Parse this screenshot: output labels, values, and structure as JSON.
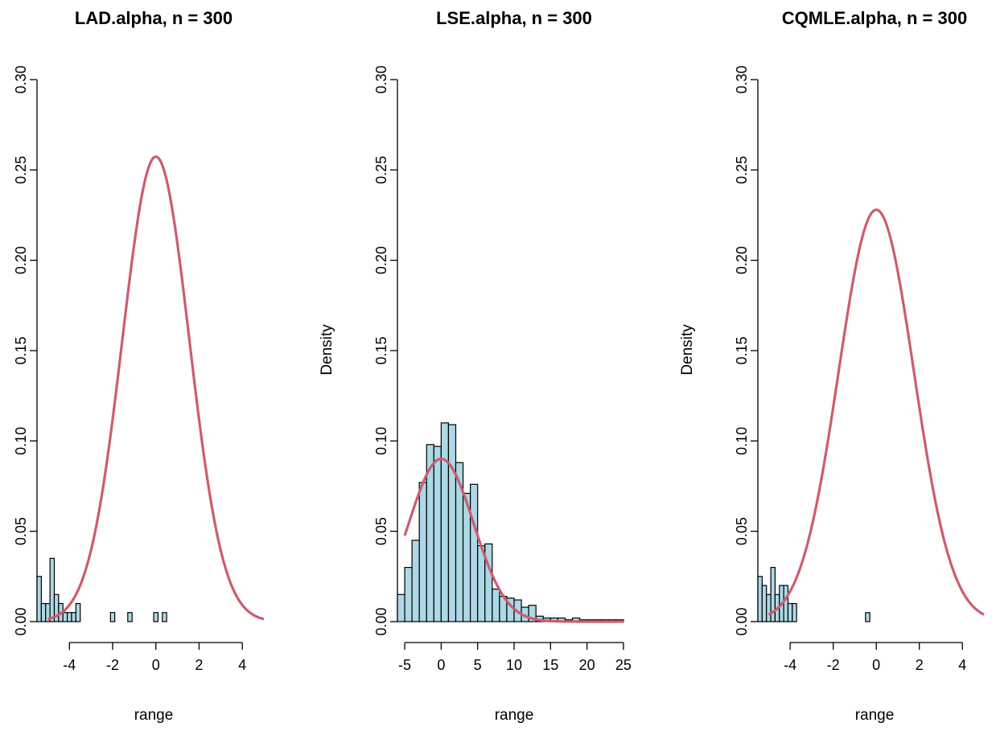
{
  "colors": {
    "bar_fill": "#add8e6",
    "bar_stroke": "#000000",
    "curve": "#cd5c6e",
    "axis": "#000000"
  },
  "chart_data": [
    {
      "type": "bar",
      "subtype": "histogram-with-density",
      "title": "LAD.alpha, n = 300",
      "xlabel": "range",
      "ylabel": "",
      "xlim": [
        -5.5,
        5.0
      ],
      "ylim": [
        0,
        0.3
      ],
      "xticks": [
        -4,
        -2,
        0,
        2,
        4
      ],
      "yticks": [
        0.0,
        0.05,
        0.1,
        0.15,
        0.2,
        0.25,
        0.3
      ],
      "ytick_labels": [
        "0.00",
        "0.05",
        "0.10",
        "0.15",
        "0.20",
        "0.25",
        "0.30"
      ],
      "bin_width": 0.2,
      "bin_starts": [
        -5.5,
        -5.3,
        -5.1,
        -4.9,
        -4.7,
        -4.5,
        -4.3,
        -4.1,
        -3.9,
        -3.7,
        -3.5,
        -3.3,
        -3.1,
        -2.9,
        -2.7,
        -2.5,
        -2.3,
        -2.1,
        -1.9,
        -1.7,
        -1.5,
        -1.3,
        -1.1,
        -0.9,
        -0.7,
        -0.5,
        -0.3,
        -0.1,
        0.1,
        0.3
      ],
      "values": [
        0.025,
        0.01,
        0.01,
        0.035,
        0.015,
        0.01,
        0.005,
        0.005,
        0.005,
        0.01,
        0,
        0,
        0,
        0,
        0,
        0,
        0,
        0.005,
        0,
        0,
        0,
        0.005,
        0,
        0,
        0,
        0,
        0,
        0.005,
        0,
        0.005
      ],
      "density_curve": {
        "mean": 0.0,
        "sd": 1.55,
        "x_range": [
          -5.0,
          5.0
        ]
      }
    },
    {
      "type": "bar",
      "subtype": "histogram-with-density",
      "title": "LSE.alpha, n = 300",
      "xlabel": "range",
      "ylabel": "Density",
      "xlim": [
        -6.0,
        26.0
      ],
      "ylim": [
        0,
        0.3
      ],
      "xticks": [
        -5,
        0,
        5,
        10,
        15,
        20,
        25
      ],
      "yticks": [
        0.0,
        0.05,
        0.1,
        0.15,
        0.2,
        0.25,
        0.3
      ],
      "ytick_labels": [
        "0.00",
        "0.05",
        "0.10",
        "0.15",
        "0.20",
        "0.25",
        "0.30"
      ],
      "bin_width": 1,
      "bin_starts": [
        -6,
        -5,
        -4,
        -3,
        -2,
        -1,
        0,
        1,
        2,
        3,
        4,
        5,
        6,
        7,
        8,
        9,
        10,
        11,
        12,
        13,
        14,
        15,
        16,
        17,
        18,
        19,
        20,
        21,
        22,
        23,
        24,
        25
      ],
      "values": [
        0.015,
        0.03,
        0.045,
        0.077,
        0.098,
        0.097,
        0.11,
        0.109,
        0.088,
        0.071,
        0.076,
        0.042,
        0.043,
        0.018,
        0.014,
        0.013,
        0.012,
        0.008,
        0.009,
        0.003,
        0.002,
        0.002,
        0.002,
        0.001,
        0.002,
        0.001,
        0.001,
        0.001,
        0.001,
        0.001,
        0.001,
        0.0
      ],
      "density_curve": {
        "mean": 0.0,
        "sd": 4.43,
        "x_range": [
          -5.0,
          25.0
        ]
      }
    },
    {
      "type": "bar",
      "subtype": "histogram-with-density",
      "title": "CQMLE.alpha, n = 300",
      "xlabel": "range",
      "ylabel": "Density",
      "xlim": [
        -5.5,
        5.0
      ],
      "ylim": [
        0,
        0.3
      ],
      "xticks": [
        -4,
        -2,
        0,
        2,
        4
      ],
      "yticks": [
        0.0,
        0.05,
        0.1,
        0.15,
        0.2,
        0.25,
        0.3
      ],
      "ytick_labels": [
        "0.00",
        "0.05",
        "0.10",
        "0.15",
        "0.20",
        "0.25",
        "0.30"
      ],
      "bin_width": 0.2,
      "bin_starts": [
        -5.5,
        -5.3,
        -5.1,
        -4.9,
        -4.7,
        -4.5,
        -4.3,
        -4.1,
        -3.9,
        -3.7,
        -3.5,
        -3.3,
        -3.1,
        -2.9,
        -2.7,
        -2.5,
        -2.3,
        -2.1,
        -1.9,
        -1.7,
        -1.5,
        -1.3,
        -1.1,
        -0.9,
        -0.7,
        -0.5
      ],
      "values": [
        0.025,
        0.02,
        0.015,
        0.03,
        0.015,
        0.02,
        0.02,
        0.01,
        0.01,
        0,
        0,
        0,
        0,
        0,
        0,
        0,
        0,
        0,
        0,
        0,
        0,
        0,
        0,
        0,
        0,
        0.005
      ],
      "density_curve": {
        "mean": 0.0,
        "sd": 1.75,
        "x_range": [
          -5.0,
          5.0
        ]
      }
    }
  ]
}
